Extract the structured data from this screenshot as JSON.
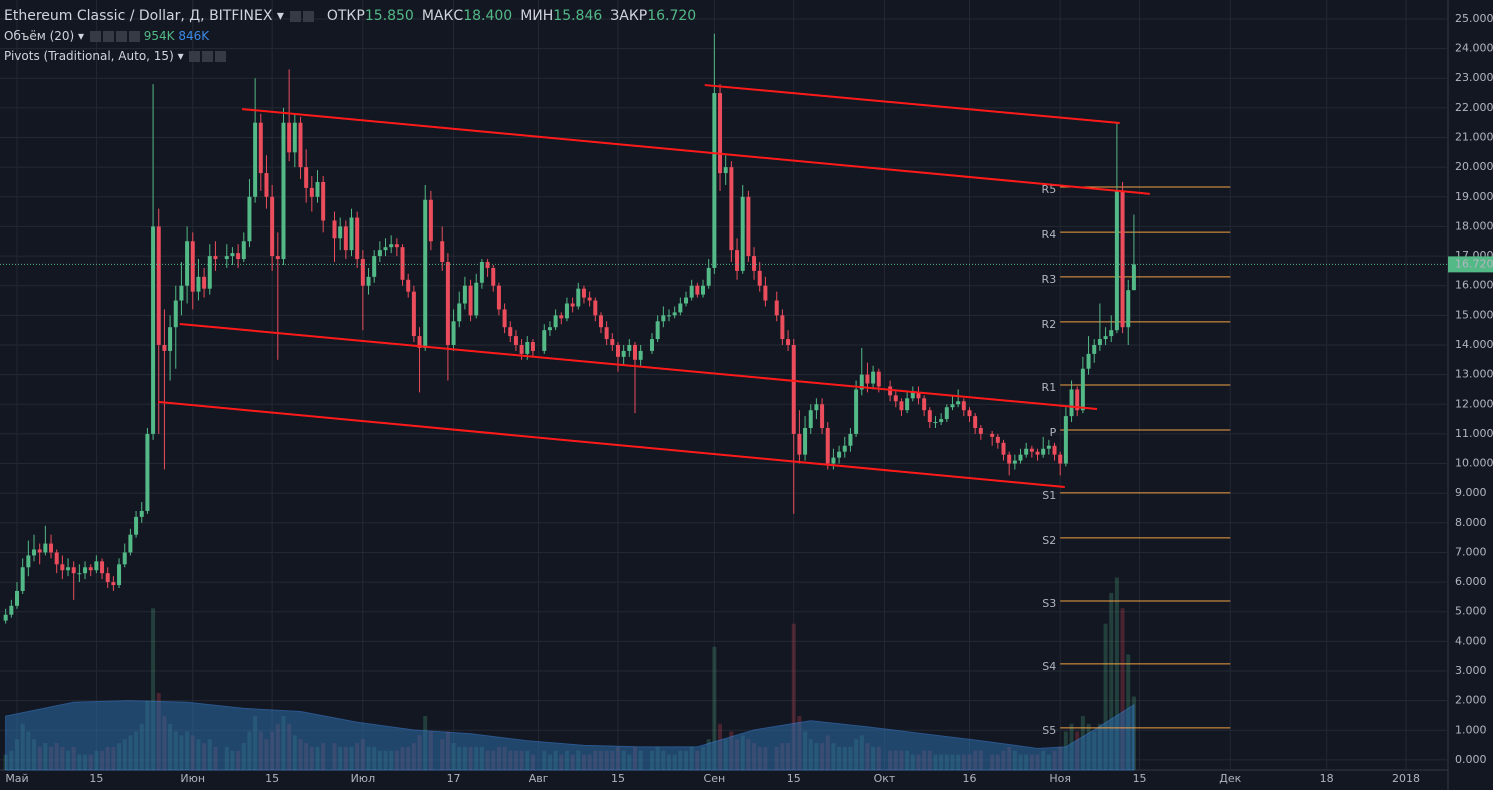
{
  "chart_data": {
    "type": "candlestick",
    "title": "Ethereum Classic / Dollar, Д, BITFINEX",
    "stats": [
      {
        "name": "ОТКР",
        "value": "15.850"
      },
      {
        "name": "МАКС",
        "value": "18.400"
      },
      {
        "name": "МИН",
        "value": "15.846"
      },
      {
        "name": "ЗАКР",
        "value": "16.720"
      }
    ],
    "volume_title": "Объём (20)",
    "volume_label": "954K",
    "volume_ma_label": "846K",
    "pivots_title": "Pivots (Traditional, Auto, 15)",
    "up_color": "#53b987",
    "down_color": "#eb4d5c",
    "volume_ma_color": "#2d6da8",
    "pivot_color": "#f0a045",
    "trend_color": "#ff1a1a",
    "xlim": [
      -3,
      252.4
    ],
    "ylim": [
      -0.34,
      25.64
    ],
    "grid": true,
    "xticks": [
      {
        "value": 0,
        "label": "Май"
      },
      {
        "value": 14,
        "label": "15"
      },
      {
        "value": 31,
        "label": "Июн"
      },
      {
        "value": 45,
        "label": "15"
      },
      {
        "value": 61,
        "label": "Июл"
      },
      {
        "value": 77,
        "label": "17"
      },
      {
        "value": 92,
        "label": "Авг"
      },
      {
        "value": 106,
        "label": "15"
      },
      {
        "value": 123,
        "label": "Сен"
      },
      {
        "value": 137,
        "label": "15"
      },
      {
        "value": 153,
        "label": "Окт"
      },
      {
        "value": 168,
        "label": "16"
      },
      {
        "value": 184,
        "label": "Ноя"
      },
      {
        "value": 198,
        "label": "15"
      },
      {
        "value": 214,
        "label": "Дек"
      },
      {
        "value": 231,
        "label": "18"
      },
      {
        "value": 245,
        "label": "2018"
      }
    ],
    "yticks": [
      {
        "value": 0,
        "label": "0.000"
      },
      {
        "value": 1,
        "label": "1.000"
      },
      {
        "value": 2,
        "label": "2.000"
      },
      {
        "value": 3,
        "label": "3.000"
      },
      {
        "value": 4,
        "label": "4.000"
      },
      {
        "value": 5,
        "label": "5.000"
      },
      {
        "value": 6,
        "label": "6.000"
      },
      {
        "value": 7,
        "label": "7.000"
      },
      {
        "value": 8,
        "label": "8.000"
      },
      {
        "value": 9,
        "label": "9.000"
      },
      {
        "value": 10,
        "label": "10.000"
      },
      {
        "value": 11,
        "label": "11.000"
      },
      {
        "value": 12,
        "label": "12.000"
      },
      {
        "value": 13,
        "label": "13.000"
      },
      {
        "value": 14,
        "label": "14.000"
      },
      {
        "value": 15,
        "label": "15.000"
      },
      {
        "value": 16,
        "label": "16.000"
      },
      {
        "value": 17,
        "label": "17.000"
      },
      {
        "value": 18,
        "label": "18.000"
      },
      {
        "value": 19,
        "label": "19.000"
      },
      {
        "value": 20,
        "label": "20.000"
      },
      {
        "value": 21,
        "label": "21.000"
      },
      {
        "value": 22,
        "label": "22.000"
      },
      {
        "value": 23,
        "label": "23.000"
      },
      {
        "value": 24,
        "label": "24.000"
      },
      {
        "value": 25,
        "label": "25.000"
      }
    ],
    "last_price": {
      "value": 16.72,
      "label": "16.720"
    },
    "pivot_x": [
      184,
      214
    ],
    "pivots": [
      {
        "name": "R5",
        "value": 19.33
      },
      {
        "name": "R4",
        "value": 17.81
      },
      {
        "name": "R3",
        "value": 16.3
      },
      {
        "name": "R2",
        "value": 14.78
      },
      {
        "name": "R1",
        "value": 12.65
      },
      {
        "name": "P",
        "value": 11.13
      },
      {
        "name": "S1",
        "value": 9.01
      },
      {
        "name": "S2",
        "value": 7.49
      },
      {
        "name": "S3",
        "value": 5.36
      },
      {
        "name": "S4",
        "value": 3.24
      },
      {
        "name": "S5",
        "value": 1.08
      }
    ],
    "trendlines": [
      [
        [
          39.7,
          21.96
        ],
        [
          199.8,
          19.1
        ]
      ],
      [
        [
          121.3,
          22.77
        ],
        [
          194.5,
          21.49
        ]
      ],
      [
        [
          28.7,
          14.71
        ],
        [
          190.5,
          11.84
        ]
      ],
      [
        [
          24.9,
          12.08
        ],
        [
          184.8,
          9.21
        ]
      ]
    ],
    "x": [
      -2,
      -1,
      0,
      1,
      2,
      3,
      4,
      5,
      6,
      7,
      8,
      9,
      10,
      11,
      12,
      13,
      14,
      15,
      16,
      17,
      18,
      19,
      20,
      21,
      22,
      23,
      24,
      25,
      26,
      27,
      28,
      29,
      30,
      31,
      32,
      33,
      34,
      35,
      37,
      38,
      39,
      40,
      41,
      42,
      43,
      44,
      45,
      46,
      47,
      48,
      49,
      50,
      51,
      52,
      53,
      54,
      56,
      57,
      58,
      59,
      60,
      61,
      62,
      63,
      64,
      65,
      66,
      67,
      68,
      69,
      70,
      71,
      72,
      73,
      75,
      76,
      77,
      78,
      79,
      80,
      81,
      82,
      83,
      84,
      85,
      86,
      87,
      88,
      89,
      90,
      91,
      93,
      94,
      95,
      96,
      97,
      98,
      99,
      100,
      101,
      102,
      103,
      104,
      105,
      106,
      107,
      108,
      109,
      110,
      112,
      113,
      114,
      115,
      116,
      117,
      118,
      119,
      120,
      121,
      122,
      123,
      124,
      125,
      126,
      127,
      128,
      129,
      130,
      131,
      132,
      134,
      135,
      136,
      137,
      138,
      139,
      140,
      141,
      142,
      143,
      144,
      145,
      146,
      147,
      148,
      149,
      150,
      151,
      152,
      154,
      155,
      156,
      157,
      158,
      159,
      160,
      161,
      162,
      163,
      164,
      165,
      166,
      167,
      168,
      169,
      170,
      172,
      173,
      174,
      175,
      176,
      177,
      178,
      179,
      180,
      181,
      182,
      183,
      184,
      185,
      186,
      187,
      188,
      189,
      190,
      191,
      192,
      193,
      194,
      195,
      196,
      197
    ],
    "open": [
      4.7,
      4.9,
      5.2,
      5.7,
      6.5,
      6.9,
      7.1,
      7.0,
      7.3,
      7.0,
      6.6,
      6.4,
      6.5,
      6.3,
      6.3,
      6.5,
      6.4,
      6.7,
      6.3,
      6.0,
      5.9,
      6.6,
      7.0,
      7.6,
      8.2,
      8.4,
      11.0,
      18.0,
      14.0,
      13.8,
      14.6,
      15.5,
      16.0,
      17.5,
      15.8,
      16.3,
      15.9,
      17.0,
      16.9,
      17.0,
      17.1,
      16.9,
      17.5,
      19.0,
      21.5,
      19.8,
      19.0,
      17.0,
      16.9,
      21.5,
      20.5,
      21.5,
      20.0,
      19.3,
      19.0,
      19.5,
      18.2,
      17.6,
      18.0,
      17.2,
      18.3,
      16.9,
      16.0,
      16.3,
      17.0,
      17.2,
      17.3,
      17.4,
      17.3,
      16.2,
      15.8,
      14.3,
      13.9,
      18.9,
      17.5,
      16.8,
      14.0,
      14.8,
      15.4,
      16.0,
      15.0,
      16.1,
      16.8,
      16.6,
      16.0,
      15.2,
      14.6,
      14.3,
      14.0,
      13.7,
      14.1,
      13.8,
      14.5,
      14.6,
      15.0,
      14.9,
      15.4,
      15.3,
      15.9,
      15.6,
      15.5,
      15.0,
      14.6,
      14.2,
      14.0,
      13.6,
      13.8,
      14.0,
      13.5,
      13.8,
      14.2,
      14.8,
      15.0,
      15.0,
      15.1,
      15.4,
      15.6,
      16.0,
      15.7,
      16.0,
      16.6,
      22.5,
      19.8,
      20.0,
      17.2,
      16.5,
      19.0,
      17.0,
      16.5,
      16.0,
      15.5,
      15.0,
      14.2,
      14.0,
      11.0,
      10.3,
      11.2,
      11.8,
      12.0,
      11.2,
      10.0,
      10.2,
      10.4,
      10.6,
      11.0,
      12.5,
      13.0,
      12.7,
      13.1,
      12.6,
      12.3,
      12.1,
      11.8,
      12.2,
      12.4,
      12.2,
      11.8,
      11.4,
      11.4,
      11.5,
      11.9,
      12.0,
      12.1,
      11.8,
      11.6,
      11.2,
      11.0,
      10.9,
      10.7,
      10.3,
      10.0,
      10.1,
      10.3,
      10.5,
      10.4,
      10.3,
      10.5,
      10.6,
      10.3,
      10.0,
      11.6,
      12.5,
      11.8,
      13.2,
      13.7,
      14.0,
      14.2,
      14.3,
      14.5,
      19.2,
      14.6,
      15.85
    ],
    "high": [
      5.1,
      5.4,
      6.0,
      6.8,
      7.4,
      7.6,
      7.3,
      7.9,
      7.6,
      7.1,
      6.9,
      6.8,
      6.7,
      6.6,
      6.7,
      6.6,
      6.9,
      6.8,
      6.5,
      6.2,
      6.8,
      7.3,
      7.8,
      8.4,
      8.7,
      11.2,
      22.8,
      18.6,
      15.2,
      15.0,
      16.0,
      16.8,
      18.0,
      17.8,
      16.9,
      16.6,
      17.4,
      17.5,
      17.4,
      17.3,
      17.4,
      17.8,
      19.6,
      23.0,
      21.8,
      20.4,
      19.4,
      17.8,
      22.0,
      23.3,
      21.8,
      21.7,
      20.6,
      19.7,
      19.9,
      19.7,
      18.5,
      18.3,
      18.2,
      18.6,
      18.5,
      17.2,
      16.6,
      17.2,
      17.5,
      17.6,
      17.7,
      17.6,
      17.4,
      16.4,
      16.0,
      14.6,
      19.4,
      19.2,
      18.0,
      17.1,
      15.2,
      15.8,
      16.3,
      16.2,
      16.4,
      16.9,
      16.9,
      16.7,
      16.1,
      15.4,
      14.8,
      14.5,
      14.2,
      14.3,
      14.2,
      14.7,
      14.8,
      15.2,
      15.1,
      15.6,
      15.6,
      16.1,
      16.0,
      15.8,
      15.6,
      15.1,
      14.8,
      14.4,
      14.1,
      14.0,
      14.2,
      14.1,
      14.0,
      14.4,
      15.0,
      15.3,
      15.2,
      15.3,
      15.6,
      15.8,
      16.2,
      16.1,
      16.2,
      16.9,
      24.5,
      22.8,
      20.4,
      20.2,
      17.6,
      19.4,
      19.2,
      17.3,
      16.8,
      16.3,
      15.8,
      15.2,
      14.5,
      14.2,
      11.8,
      11.6,
      12.0,
      12.2,
      12.2,
      11.4,
      10.5,
      10.6,
      10.9,
      11.2,
      12.8,
      13.9,
      13.4,
      13.3,
      13.2,
      12.8,
      12.5,
      12.2,
      12.4,
      12.6,
      12.6,
      12.3,
      11.9,
      11.6,
      11.7,
      12.0,
      12.3,
      12.5,
      12.2,
      11.9,
      11.7,
      11.3,
      11.1,
      11.0,
      10.8,
      10.4,
      10.3,
      10.5,
      10.7,
      10.6,
      10.5,
      10.9,
      10.8,
      10.7,
      10.4,
      11.9,
      12.8,
      12.6,
      13.6,
      14.3,
      14.2,
      15.4,
      14.6,
      15.0,
      21.5,
      19.5,
      16.2,
      18.4
    ],
    "low": [
      4.6,
      4.8,
      5.1,
      5.6,
      6.2,
      6.7,
      6.6,
      6.9,
      6.8,
      6.3,
      6.1,
      6.2,
      5.4,
      6.0,
      6.1,
      6.2,
      6.3,
      6.1,
      5.8,
      5.7,
      5.8,
      6.5,
      6.9,
      7.5,
      8.0,
      8.3,
      10.8,
      11.0,
      9.8,
      12.8,
      13.2,
      15.0,
      15.4,
      15.2,
      15.5,
      15.6,
      15.7,
      16.5,
      16.6,
      16.7,
      16.6,
      16.8,
      17.3,
      18.8,
      19.2,
      18.6,
      16.5,
      13.5,
      16.7,
      20.2,
      20.0,
      19.6,
      18.8,
      18.5,
      18.8,
      17.8,
      16.8,
      17.2,
      16.9,
      17.0,
      16.6,
      14.5,
      15.7,
      16.1,
      16.8,
      17.0,
      17.1,
      17.0,
      16.0,
      15.6,
      14.1,
      12.4,
      13.8,
      17.2,
      16.5,
      12.8,
      13.8,
      14.6,
      15.2,
      14.8,
      14.9,
      15.9,
      16.3,
      15.8,
      15.0,
      14.4,
      14.1,
      13.8,
      13.5,
      13.5,
      13.6,
      13.7,
      14.3,
      14.5,
      14.7,
      14.8,
      15.1,
      15.2,
      15.4,
      15.3,
      14.8,
      14.4,
      14.0,
      13.8,
      13.1,
      13.3,
      13.6,
      11.7,
      13.3,
      13.7,
      14.1,
      14.6,
      14.8,
      14.9,
      15.0,
      15.3,
      15.5,
      15.6,
      15.6,
      15.9,
      16.4,
      19.2,
      19.4,
      16.8,
      16.2,
      16.4,
      16.8,
      16.2,
      15.8,
      15.3,
      14.8,
      14.0,
      13.8,
      8.3,
      10.0,
      10.1,
      11.0,
      11.5,
      11.0,
      9.8,
      9.8,
      10.0,
      10.2,
      10.4,
      10.9,
      12.3,
      12.4,
      12.5,
      12.4,
      12.1,
      11.9,
      11.6,
      11.7,
      12.1,
      12.0,
      11.6,
      11.2,
      11.2,
      11.3,
      11.4,
      11.8,
      11.9,
      11.6,
      11.4,
      11.0,
      10.8,
      10.6,
      10.5,
      10.1,
      9.6,
      9.8,
      10.0,
      10.2,
      10.2,
      10.1,
      10.2,
      10.3,
      10.1,
      9.6,
      9.9,
      11.4,
      11.6,
      11.7,
      13.0,
      13.4,
      13.8,
      14.0,
      14.1,
      14.4,
      14.4,
      14.0,
      15.846
    ],
    "close": [
      4.9,
      5.2,
      5.7,
      6.5,
      6.9,
      7.1,
      7.0,
      7.3,
      7.0,
      6.6,
      6.4,
      6.5,
      6.3,
      6.3,
      6.5,
      6.4,
      6.7,
      6.3,
      6.0,
      5.9,
      6.6,
      7.0,
      7.6,
      8.2,
      8.4,
      11.0,
      18.0,
      14.0,
      13.8,
      14.6,
      15.5,
      16.0,
      17.5,
      15.8,
      16.3,
      15.9,
      17.0,
      16.9,
      17.0,
      17.1,
      16.9,
      17.5,
      19.0,
      21.5,
      19.8,
      19.0,
      17.0,
      16.9,
      21.5,
      20.5,
      21.5,
      20.0,
      19.3,
      19.0,
      19.5,
      18.2,
      17.6,
      18.0,
      17.2,
      18.3,
      16.9,
      16.0,
      16.3,
      17.0,
      17.2,
      17.3,
      17.4,
      17.3,
      16.2,
      15.8,
      14.3,
      13.9,
      18.9,
      17.5,
      16.8,
      14.0,
      14.8,
      15.4,
      16.0,
      15.0,
      16.1,
      16.8,
      16.6,
      16.0,
      15.2,
      14.6,
      14.3,
      14.0,
      13.7,
      14.1,
      13.8,
      14.5,
      14.6,
      15.0,
      14.9,
      15.4,
      15.3,
      15.9,
      15.6,
      15.5,
      15.0,
      14.6,
      14.2,
      14.0,
      13.6,
      13.8,
      14.0,
      13.5,
      13.8,
      14.2,
      14.8,
      15.0,
      15.0,
      15.1,
      15.4,
      15.6,
      16.0,
      15.7,
      16.0,
      16.6,
      22.5,
      19.8,
      20.0,
      17.2,
      16.5,
      19.0,
      17.0,
      16.5,
      16.0,
      15.5,
      15.0,
      14.2,
      14.0,
      11.0,
      10.3,
      11.2,
      11.8,
      12.0,
      11.2,
      10.0,
      10.2,
      10.4,
      10.6,
      11.0,
      12.5,
      13.0,
      12.7,
      13.1,
      12.6,
      12.3,
      12.1,
      11.8,
      12.2,
      12.4,
      12.2,
      11.8,
      11.4,
      11.4,
      11.5,
      11.9,
      12.0,
      12.1,
      11.8,
      11.6,
      11.2,
      11.0,
      10.9,
      10.7,
      10.3,
      10.0,
      10.1,
      10.3,
      10.5,
      10.4,
      10.3,
      10.5,
      10.6,
      10.3,
      10.0,
      11.6,
      12.5,
      11.8,
      13.2,
      13.7,
      14.0,
      14.2,
      14.3,
      14.5,
      19.2,
      14.6,
      15.85,
      16.72
    ],
    "volume": [
      200,
      250,
      400,
      600,
      500,
      400,
      300,
      350,
      300,
      350,
      300,
      250,
      300,
      200,
      200,
      200,
      250,
      250,
      300,
      300,
      350,
      400,
      450,
      500,
      600,
      900,
      2100,
      1000,
      700,
      600,
      500,
      450,
      500,
      450,
      400,
      350,
      400,
      300,
      300,
      250,
      250,
      350,
      500,
      700,
      500,
      400,
      500,
      600,
      700,
      600,
      450,
      400,
      350,
      300,
      300,
      350,
      350,
      300,
      300,
      300,
      350,
      400,
      300,
      300,
      250,
      250,
      250,
      250,
      300,
      300,
      350,
      450,
      700,
      500,
      400,
      500,
      350,
      300,
      300,
      300,
      300,
      300,
      250,
      250,
      300,
      300,
      250,
      250,
      250,
      250,
      200,
      250,
      200,
      250,
      200,
      250,
      200,
      250,
      200,
      200,
      250,
      250,
      250,
      250,
      300,
      250,
      200,
      300,
      250,
      250,
      300,
      250,
      200,
      200,
      250,
      250,
      300,
      250,
      300,
      400,
      1600,
      600,
      400,
      500,
      400,
      450,
      400,
      350,
      300,
      300,
      300,
      350,
      350,
      1900,
      700,
      500,
      400,
      350,
      350,
      450,
      350,
      300,
      300,
      300,
      400,
      450,
      350,
      300,
      300,
      250,
      250,
      250,
      250,
      200,
      200,
      250,
      250,
      200,
      200,
      200,
      200,
      200,
      200,
      200,
      250,
      250,
      200,
      200,
      250,
      300,
      250,
      200,
      200,
      200,
      200,
      250,
      200,
      250,
      300,
      500,
      600,
      500,
      700,
      600,
      500,
      600,
      1900,
      2300,
      2500,
      2100,
      1500,
      954
    ],
    "volume_ma_x": [
      -2,
      10,
      20,
      30,
      40,
      50,
      60,
      70,
      80,
      90,
      100,
      110,
      120,
      130,
      140,
      150,
      160,
      170,
      180,
      185,
      190,
      197
    ],
    "volume_ma": [
      700,
      880,
      900,
      880,
      800,
      760,
      620,
      520,
      470,
      380,
      320,
      300,
      300,
      520,
      640,
      560,
      470,
      380,
      280,
      300,
      520,
      846
    ]
  }
}
